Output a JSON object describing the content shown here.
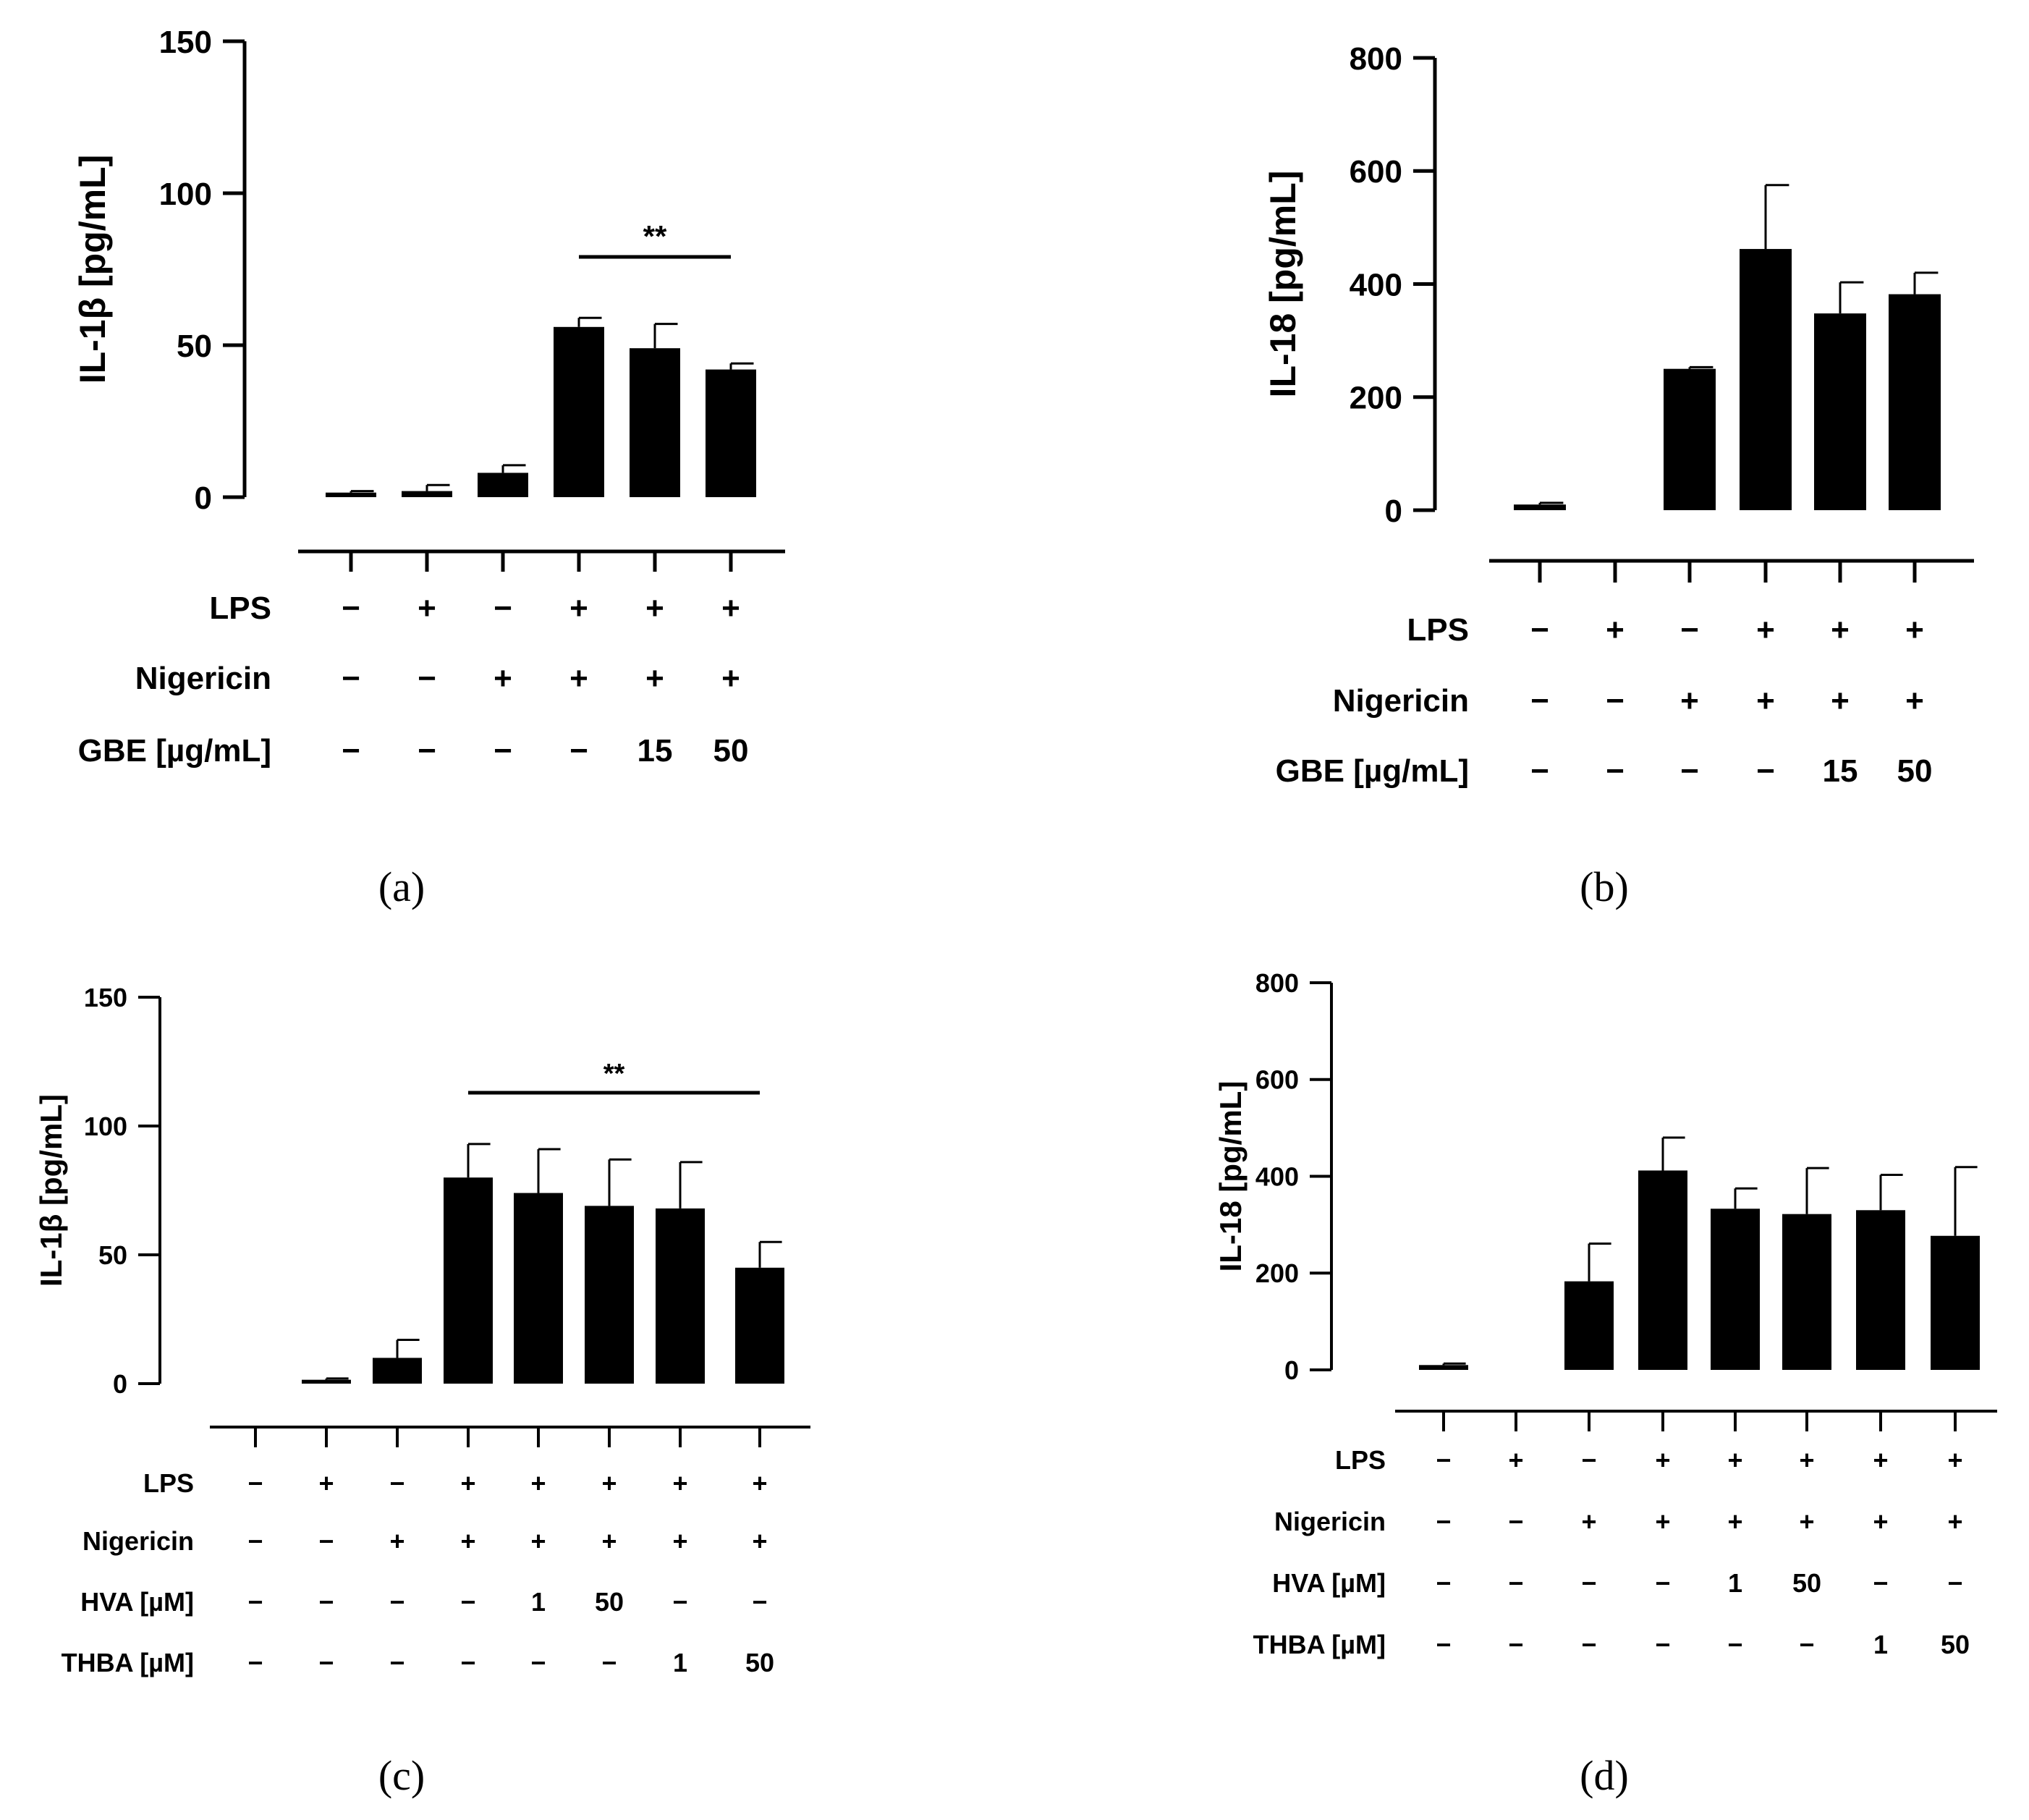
{
  "chart_data": [
    {
      "type": "bar",
      "panel_label": "(a)",
      "ylabel": "IL-1β [pg/mL]",
      "ylim": [
        0,
        150
      ],
      "yticks": [
        0,
        50,
        100,
        150
      ],
      "values": [
        1.5,
        2,
        8,
        56,
        49,
        42
      ],
      "errors": [
        0.5,
        2,
        2.5,
        3,
        8,
        2
      ],
      "significance": {
        "label": "**",
        "from": 3,
        "to": 5
      },
      "conditions": [
        {
          "name": "LPS",
          "values": [
            "−",
            "+",
            "−",
            "+",
            "+",
            "+"
          ]
        },
        {
          "name": "Nigericin",
          "values": [
            "−",
            "−",
            "+",
            "+",
            "+",
            "+"
          ]
        },
        {
          "name": "GBE [µg/mL]",
          "values": [
            "−",
            "−",
            "−",
            "−",
            "15",
            "50"
          ]
        }
      ]
    },
    {
      "type": "bar",
      "panel_label": "(b)",
      "ylabel": "IL-18 [pg/mL]",
      "ylim": [
        0,
        800
      ],
      "yticks": [
        0,
        200,
        400,
        600,
        800
      ],
      "values": [
        10,
        0,
        250,
        462,
        348,
        382
      ],
      "errors": [
        3,
        0,
        3,
        113,
        55,
        38
      ],
      "significance": null,
      "conditions": [
        {
          "name": "LPS",
          "values": [
            "−",
            "+",
            "−",
            "+",
            "+",
            "+"
          ]
        },
        {
          "name": "Nigericin",
          "values": [
            "−",
            "−",
            "+",
            "+",
            "+",
            "+"
          ]
        },
        {
          "name": "GBE [µg/mL]",
          "values": [
            "−",
            "−",
            "−",
            "−",
            "15",
            "50"
          ]
        }
      ]
    },
    {
      "type": "bar",
      "panel_label": "(c)",
      "ylabel": "IL-1β [pg/mL]",
      "ylim": [
        0,
        150
      ],
      "yticks": [
        0,
        50,
        100,
        150
      ],
      "values": [
        0,
        1.5,
        10,
        80,
        74,
        69,
        68,
        45
      ],
      "errors": [
        0,
        0.5,
        7,
        13,
        17,
        18,
        18,
        10
      ],
      "significance": {
        "label": "**",
        "from": 3,
        "to": 7
      },
      "conditions": [
        {
          "name": "LPS",
          "values": [
            "−",
            "+",
            "−",
            "+",
            "+",
            "+",
            "+",
            "+"
          ]
        },
        {
          "name": "Nigericin",
          "values": [
            "−",
            "−",
            "+",
            "+",
            "+",
            "+",
            "+",
            "+"
          ]
        },
        {
          "name": "HVA [µM]",
          "values": [
            "−",
            "−",
            "−",
            "−",
            "1",
            "50",
            "−",
            "−"
          ]
        },
        {
          "name": "THBA [µM]",
          "values": [
            "−",
            "−",
            "−",
            "−",
            "−",
            "−",
            "1",
            "50"
          ]
        }
      ]
    },
    {
      "type": "bar",
      "panel_label": "(d)",
      "ylabel": "IL-18 [pg/mL]",
      "ylim": [
        0,
        800
      ],
      "yticks": [
        0,
        200,
        400,
        600,
        800
      ],
      "values": [
        10,
        0,
        183,
        412,
        333,
        322,
        330,
        277
      ],
      "errors": [
        3,
        0,
        78,
        68,
        42,
        95,
        73,
        142
      ],
      "significance": null,
      "conditions": [
        {
          "name": "LPS",
          "values": [
            "−",
            "+",
            "−",
            "+",
            "+",
            "+",
            "+",
            "+"
          ]
        },
        {
          "name": "Nigericin",
          "values": [
            "−",
            "−",
            "+",
            "+",
            "+",
            "+",
            "+",
            "+"
          ]
        },
        {
          "name": "HVA [µM]",
          "values": [
            "−",
            "−",
            "−",
            "−",
            "1",
            "50",
            "−",
            "−"
          ]
        },
        {
          "name": "THBA [µM]",
          "values": [
            "−",
            "−",
            "−",
            "−",
            "−",
            "−",
            "1",
            "50"
          ]
        }
      ]
    }
  ]
}
